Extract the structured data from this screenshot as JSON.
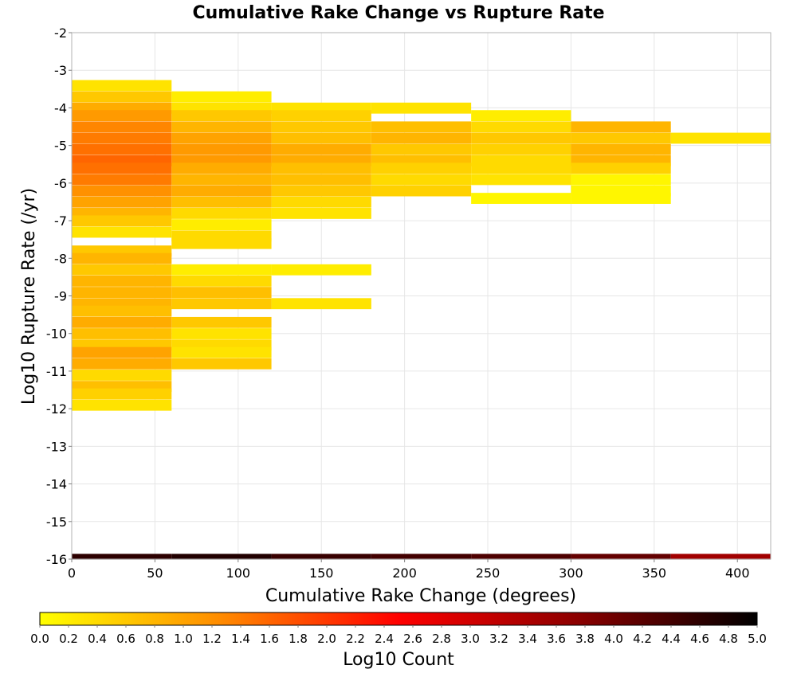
{
  "chart_data": {
    "type": "heatmap",
    "title": "Cumulative Rake Change vs Rupture Rate",
    "xlabel": "Cumulative Rake Change (degrees)",
    "ylabel": "Log10 Rupture Rate (/yr)",
    "xlim": [
      0,
      420
    ],
    "ylim": [
      -16,
      -2
    ],
    "x_ticks": [
      "0",
      "50",
      "100",
      "150",
      "200",
      "250",
      "300",
      "350",
      "400"
    ],
    "y_ticks": [
      "-2",
      "-3",
      "-4",
      "-5",
      "-6",
      "-7",
      "-8",
      "-9",
      "-10",
      "-11",
      "-12",
      "-13",
      "-14",
      "-15",
      "-16"
    ],
    "grid": true,
    "x_bin_width": 60,
    "y_bin_height": 0.28,
    "colorscale": {
      "label": "Log10 Count",
      "min": 0.0,
      "max": 5.0,
      "stops": [
        "#ffff00",
        "#ff8c00",
        "#ff0000",
        "#8b0000",
        "#000000"
      ],
      "tick_labels": [
        "0.0",
        "0.2",
        "0.4",
        "0.6",
        "0.8",
        "1.0",
        "1.2",
        "1.4",
        "1.6",
        "1.8",
        "2.0",
        "2.2",
        "2.4",
        "2.6",
        "2.8",
        "3.0",
        "3.2",
        "3.4",
        "3.6",
        "3.8",
        "4.0",
        "4.2",
        "4.4",
        "4.6",
        "4.8",
        "5.0"
      ]
    },
    "columns": [
      {
        "x_start": 0,
        "cells": [
          {
            "y": -3.4,
            "v": 0.3
          },
          {
            "y": -3.7,
            "v": 0.6
          },
          {
            "y": -4.0,
            "v": 0.9
          },
          {
            "y": -4.2,
            "v": 1.1
          },
          {
            "y": -4.5,
            "v": 1.3
          },
          {
            "y": -4.8,
            "v": 1.4
          },
          {
            "y": -5.1,
            "v": 1.5
          },
          {
            "y": -5.4,
            "v": 1.6
          },
          {
            "y": -5.6,
            "v": 1.5
          },
          {
            "y": -5.9,
            "v": 1.4
          },
          {
            "y": -6.2,
            "v": 1.2
          },
          {
            "y": -6.5,
            "v": 1.0
          },
          {
            "y": -6.8,
            "v": 0.8
          },
          {
            "y": -7.0,
            "v": 0.6
          },
          {
            "y": -7.3,
            "v": 0.3
          },
          {
            "y": -7.8,
            "v": 0.6
          },
          {
            "y": -8.0,
            "v": 0.8
          },
          {
            "y": -8.3,
            "v": 0.6
          },
          {
            "y": -8.6,
            "v": 0.8
          },
          {
            "y": -8.9,
            "v": 0.8
          },
          {
            "y": -9.2,
            "v": 0.8
          },
          {
            "y": -9.4,
            "v": 0.7
          },
          {
            "y": -9.7,
            "v": 0.9
          },
          {
            "y": -10.0,
            "v": 0.7
          },
          {
            "y": -10.3,
            "v": 0.6
          },
          {
            "y": -10.5,
            "v": 1.0
          },
          {
            "y": -10.8,
            "v": 0.9
          },
          {
            "y": -11.1,
            "v": 0.4
          },
          {
            "y": -11.4,
            "v": 0.7
          },
          {
            "y": -11.6,
            "v": 0.5
          },
          {
            "y": -11.9,
            "v": 0.3
          },
          {
            "y": -16.0,
            "v": 4.6
          }
        ]
      },
      {
        "x_start": 60,
        "cells": [
          {
            "y": -3.7,
            "v": 0.2
          },
          {
            "y": -4.0,
            "v": 0.3
          },
          {
            "y": -4.2,
            "v": 0.6
          },
          {
            "y": -4.5,
            "v": 0.8
          },
          {
            "y": -4.8,
            "v": 1.0
          },
          {
            "y": -5.1,
            "v": 1.1
          },
          {
            "y": -5.4,
            "v": 1.1
          },
          {
            "y": -5.6,
            "v": 0.9
          },
          {
            "y": -5.9,
            "v": 0.8
          },
          {
            "y": -6.2,
            "v": 0.9
          },
          {
            "y": -6.5,
            "v": 0.7
          },
          {
            "y": -6.8,
            "v": 0.4
          },
          {
            "y": -7.1,
            "v": 0.2
          },
          {
            "y": -7.4,
            "v": 0.4
          },
          {
            "y": -7.6,
            "v": 0.4
          },
          {
            "y": -8.3,
            "v": 0.2
          },
          {
            "y": -8.6,
            "v": 0.4
          },
          {
            "y": -8.9,
            "v": 0.7
          },
          {
            "y": -9.2,
            "v": 0.6
          },
          {
            "y": -9.7,
            "v": 0.6
          },
          {
            "y": -10.0,
            "v": 0.3
          },
          {
            "y": -10.3,
            "v": 0.4
          },
          {
            "y": -10.5,
            "v": 0.3
          },
          {
            "y": -10.8,
            "v": 0.6
          },
          {
            "y": -16.0,
            "v": 4.7
          }
        ]
      },
      {
        "x_start": 120,
        "cells": [
          {
            "y": -4.0,
            "v": 0.3
          },
          {
            "y": -4.2,
            "v": 0.5
          },
          {
            "y": -4.5,
            "v": 0.6
          },
          {
            "y": -4.8,
            "v": 0.7
          },
          {
            "y": -5.1,
            "v": 0.9
          },
          {
            "y": -5.4,
            "v": 0.9
          },
          {
            "y": -5.6,
            "v": 0.7
          },
          {
            "y": -5.9,
            "v": 0.7
          },
          {
            "y": -6.2,
            "v": 0.6
          },
          {
            "y": -6.5,
            "v": 0.4
          },
          {
            "y": -6.8,
            "v": 0.3
          },
          {
            "y": -8.3,
            "v": 0.2
          },
          {
            "y": -9.2,
            "v": 0.3
          },
          {
            "y": -16.0,
            "v": 4.5
          }
        ]
      },
      {
        "x_start": 180,
        "cells": [
          {
            "y": -4.0,
            "v": 0.3
          },
          {
            "y": -4.5,
            "v": 0.7
          },
          {
            "y": -4.8,
            "v": 0.8
          },
          {
            "y": -5.1,
            "v": 0.6
          },
          {
            "y": -5.4,
            "v": 0.7
          },
          {
            "y": -5.6,
            "v": 0.5
          },
          {
            "y": -5.9,
            "v": 0.4
          },
          {
            "y": -6.2,
            "v": 0.5
          },
          {
            "y": -16.0,
            "v": 4.4
          }
        ]
      },
      {
        "x_start": 240,
        "cells": [
          {
            "y": -4.2,
            "v": 0.2
          },
          {
            "y": -4.5,
            "v": 0.4
          },
          {
            "y": -4.8,
            "v": 0.6
          },
          {
            "y": -5.1,
            "v": 0.5
          },
          {
            "y": -5.4,
            "v": 0.4
          },
          {
            "y": -5.6,
            "v": 0.4
          },
          {
            "y": -5.9,
            "v": 0.3
          },
          {
            "y": -6.4,
            "v": 0.1
          },
          {
            "y": -16.0,
            "v": 4.3
          }
        ]
      },
      {
        "x_start": 300,
        "cells": [
          {
            "y": -4.5,
            "v": 0.8
          },
          {
            "y": -4.8,
            "v": 0.6
          },
          {
            "y": -5.1,
            "v": 0.8
          },
          {
            "y": -5.4,
            "v": 0.8
          },
          {
            "y": -5.6,
            "v": 0.5
          },
          {
            "y": -5.9,
            "v": 0.1
          },
          {
            "y": -6.2,
            "v": 0.1
          },
          {
            "y": -6.4,
            "v": 0.1
          },
          {
            "y": -16.0,
            "v": 4.1
          }
        ]
      },
      {
        "x_start": 360,
        "cells": [
          {
            "y": -4.8,
            "v": 0.3
          },
          {
            "y": -16.0,
            "v": 3.5
          }
        ]
      }
    ]
  }
}
